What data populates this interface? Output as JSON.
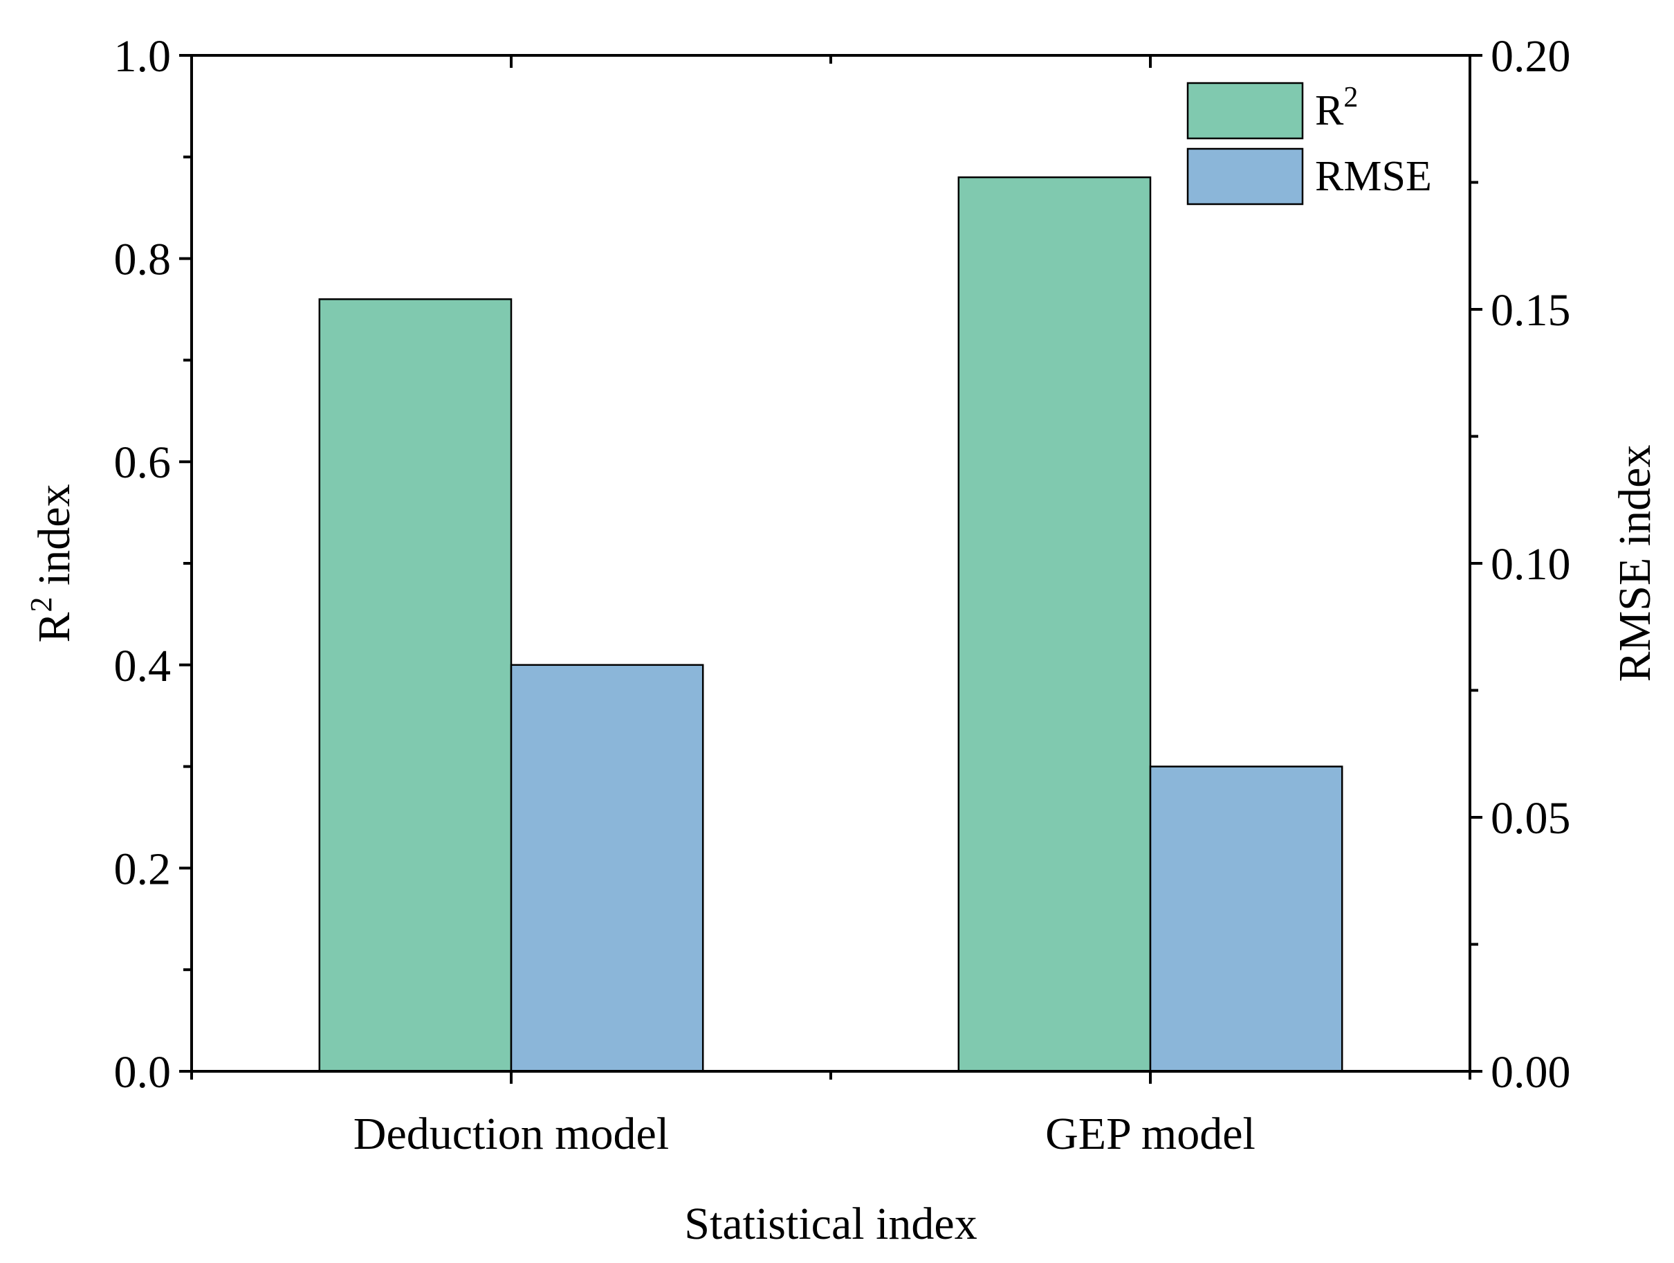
{
  "chart_data": {
    "type": "bar",
    "categories": [
      "Deduction model",
      "GEP model"
    ],
    "series": [
      {
        "name": "R",
        "name_sup": "2",
        "axis": "left",
        "color": "#80c9af",
        "values": [
          0.76,
          0.88
        ]
      },
      {
        "name": "RMSE",
        "axis": "right",
        "color": "#8bb6d9",
        "values": [
          0.08,
          0.06
        ]
      }
    ],
    "xlabel": "Statistical index",
    "ylabel_left": {
      "base": "R",
      "sup": "2",
      "rest": " index"
    },
    "ylabel_right": "RMSE index",
    "ylim_left": [
      0.0,
      1.0
    ],
    "ylim_right": [
      0.0,
      0.2
    ],
    "left_ticks": [
      "0.0",
      "0.2",
      "0.4",
      "0.6",
      "0.8",
      "1.0"
    ],
    "right_ticks": [
      "0.00",
      "0.05",
      "0.10",
      "0.15",
      "0.20"
    ],
    "legend_position": "top-right"
  }
}
